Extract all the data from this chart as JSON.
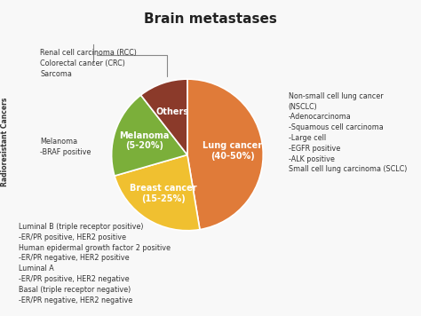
{
  "title": "Brain metastases",
  "slices": [
    {
      "label": "Lung cancer\n(40-50%)",
      "value": 45,
      "color": "#E07B39"
    },
    {
      "label": "Breast cancer\n(15-25%)",
      "value": 22,
      "color": "#F0C030"
    },
    {
      "label": "Melanoma\n(5-20%)",
      "value": 18,
      "color": "#7BAF3A"
    },
    {
      "label": "Others",
      "value": 10,
      "color": "#8B3A2A"
    }
  ],
  "right_annotation": "Non-small cell lung cancer\n(NSCLC)\n-Adenocarcinoma\n-Squamous cell carcinoma\n-Large cell\n-EGFR positive\n-ALK positive\nSmall cell lung carcinoma (SCLC)",
  "top_left_bracket_text": "Renal cell carcinoma (RCC)\nColorectal cancer (CRC)\nSarcoma",
  "mid_left_text": "Melanoma\n-BRAF positive",
  "bottom_left_text": "Luminal B (triple receptor positive)\n-ER/PR positive, HER2 positive\nHuman epidermal growth factor 2 positive\n-ER/PR negative, HER2 positive\nLuminal A\n-ER/PR positive, HER2 negative\nBasal (triple receptor negative)\n-ER/PR negative, HER2 negative",
  "rotated_label": "Radioresistant Cancers",
  "background_color": "#f8f8f8",
  "title_fontsize": 11,
  "annotation_fontsize": 5.8,
  "slice_label_fontsize": 7.0
}
